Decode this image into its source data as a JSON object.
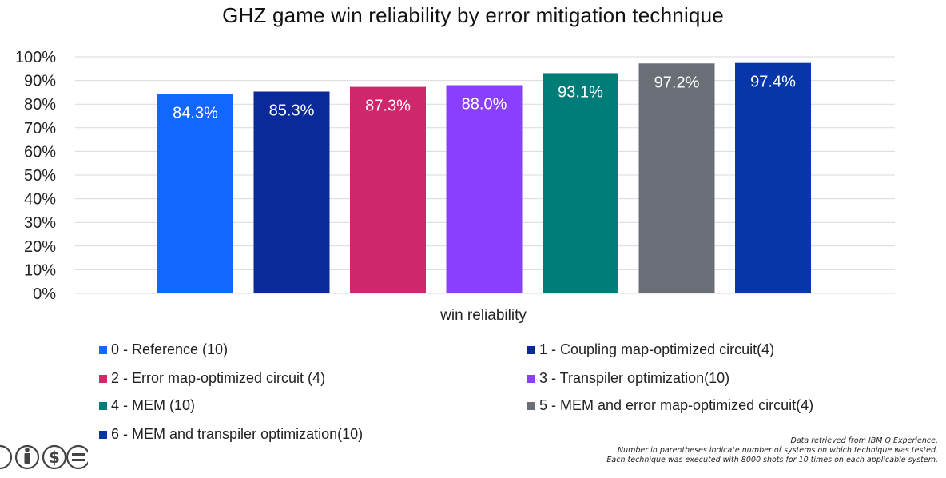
{
  "chart_data": {
    "type": "bar",
    "title": "GHZ game win reliability by error mitigation technique",
    "xlabel": "win reliability",
    "ylabel": "",
    "ylim": [
      0,
      100
    ],
    "ytick_labels": [
      "0%",
      "10%",
      "20%",
      "30%",
      "40%",
      "50%",
      "60%",
      "70%",
      "80%",
      "90%",
      "100%"
    ],
    "grid": true,
    "legend_position": "bottom",
    "series": [
      {
        "name": "0 - Reference (10)",
        "value": 84.3,
        "label": "84.3%",
        "color": "#1167FF"
      },
      {
        "name": "1 - Coupling map-optimized circuit(4)",
        "value": 85.3,
        "label": "85.3%",
        "color": "#0A2A99"
      },
      {
        "name": "2 - Error map-optimized circuit (4)",
        "value": 87.3,
        "label": "87.3%",
        "color": "#D0266C"
      },
      {
        "name": "3 - Transpiler optimization(10)",
        "value": 88.0,
        "label": "88.0%",
        "color": "#8A3FFC"
      },
      {
        "name": "4 - MEM (10)",
        "value": 93.1,
        "label": "93.1%",
        "color": "#007D79"
      },
      {
        "name": "5 - MEM and error map-optimized circuit(4)",
        "value": 97.2,
        "label": "97.2%",
        "color": "#6A6F77"
      },
      {
        "name": "6 - MEM and transpiler optimization(10)",
        "value": 97.4,
        "label": "97.4%",
        "color": "#0636A8"
      }
    ]
  },
  "footnote": [
    "Data retrieved from IBM Q Experience.",
    "Number in parentheses indicate number of systems on which technique was tested.",
    "Each technique was executed with 8000 shots for 10 times on each applicable system."
  ],
  "logo_icon": "creative-commons-by-nc-nd-icon"
}
